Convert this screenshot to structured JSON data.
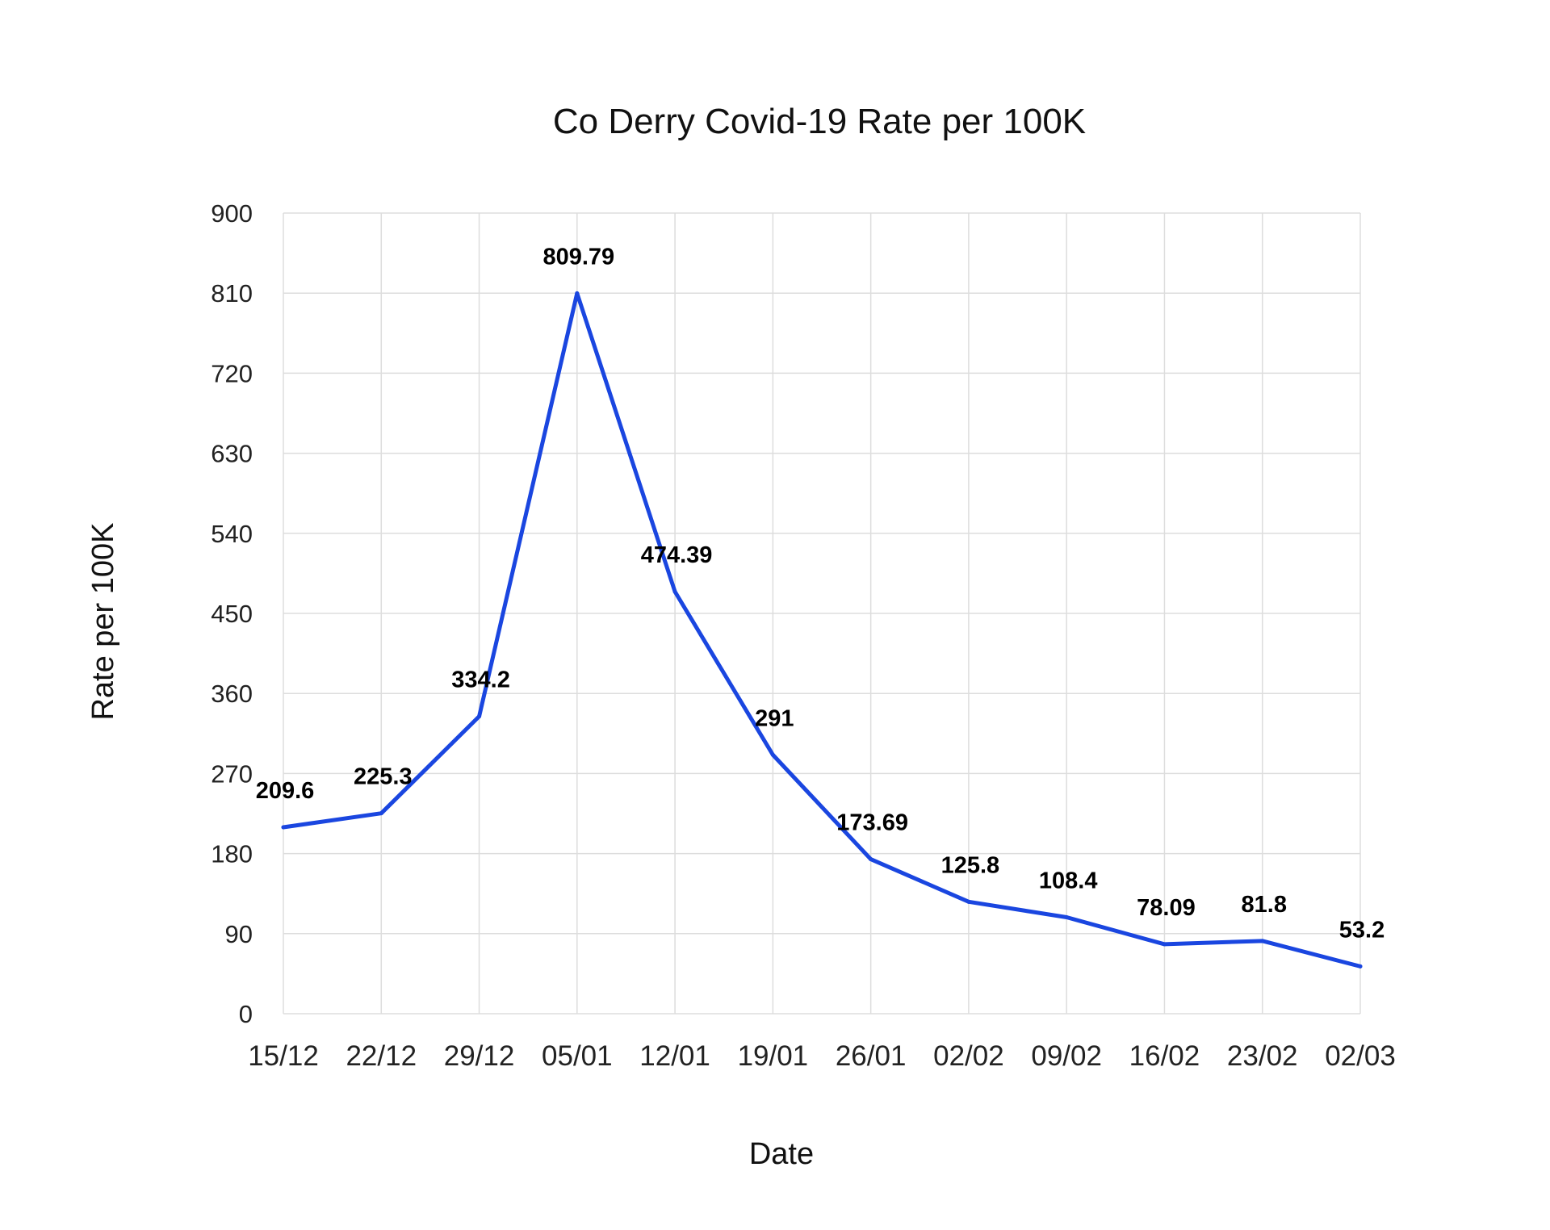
{
  "chart_data": {
    "type": "line",
    "title": "Co Derry Covid-19 Rate per 100K",
    "xlabel": "Date",
    "ylabel": "Rate per 100K",
    "ylim": [
      0,
      900
    ],
    "yticks": [
      "0",
      "90",
      "180",
      "270",
      "360",
      "450",
      "540",
      "630",
      "720",
      "810",
      "900"
    ],
    "categories": [
      "15/12",
      "22/12",
      "29/12",
      "05/01",
      "12/01",
      "19/01",
      "26/01",
      "02/02",
      "09/02",
      "16/02",
      "23/02",
      "02/03"
    ],
    "series": [
      {
        "values": [
          209.6,
          225.3,
          334.2,
          809.79,
          474.39,
          291,
          173.69,
          125.8,
          108.4,
          78.09,
          81.8,
          53.2
        ],
        "labels": [
          "209.6",
          "225.3",
          "334.2",
          "809.79",
          "474.39",
          "291",
          "173.69",
          "125.8",
          "108.4",
          "78.09",
          "81.8",
          "53.2"
        ],
        "color": "#1a46e0"
      }
    ],
    "grid": true
  }
}
